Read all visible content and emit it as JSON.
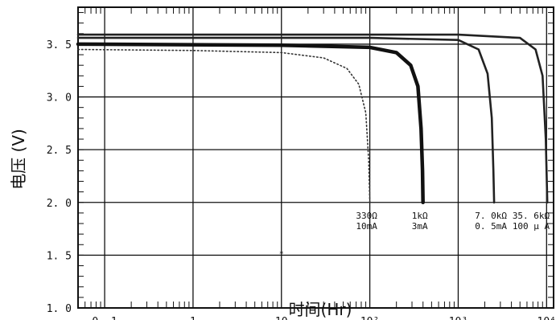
{
  "chart_data": {
    "type": "line",
    "xlabel": "时间(Hr)",
    "ylabel": "电压 (V)",
    "x_scale": "log",
    "xlim": [
      0.05,
      12000
    ],
    "ylim": [
      1.0,
      3.85
    ],
    "grid": true,
    "x_ticks": [
      {
        "value": 0.1,
        "label": "0. 1"
      },
      {
        "value": 1,
        "label": "1"
      },
      {
        "value": 10,
        "label": "10"
      },
      {
        "value": 100,
        "label": "10²"
      },
      {
        "value": 1000,
        "label": "10³"
      },
      {
        "value": 10000,
        "label": "10⁴"
      }
    ],
    "y_ticks": [
      {
        "value": 1.0,
        "label": "1. 0"
      },
      {
        "value": 1.5,
        "label": "1. 5"
      },
      {
        "value": 2.0,
        "label": "2. 0"
      },
      {
        "value": 2.5,
        "label": "2. 5"
      },
      {
        "value": 3.0,
        "label": "3. 0"
      },
      {
        "value": 3.5,
        "label": "3. 5"
      }
    ],
    "series": [
      {
        "label1": "330Ω",
        "label2": "10mA",
        "style": "dotted",
        "points": [
          [
            0.05,
            3.45
          ],
          [
            1,
            3.44
          ],
          [
            10,
            3.42
          ],
          [
            30,
            3.37
          ],
          [
            55,
            3.27
          ],
          [
            75,
            3.12
          ],
          [
            90,
            2.85
          ],
          [
            97,
            2.4
          ],
          [
            100,
            2.0
          ]
        ]
      },
      {
        "label1": "1kΩ",
        "label2": "3mA",
        "style": "thick",
        "points": [
          [
            0.05,
            3.5
          ],
          [
            10,
            3.49
          ],
          [
            100,
            3.47
          ],
          [
            200,
            3.42
          ],
          [
            290,
            3.3
          ],
          [
            350,
            3.1
          ],
          [
            380,
            2.7
          ],
          [
            395,
            2.3
          ],
          [
            400,
            2.0
          ]
        ]
      },
      {
        "label1": "7. 0kΩ",
        "label2": "0. 5mA",
        "style": "solid",
        "points": [
          [
            0.05,
            3.56
          ],
          [
            100,
            3.56
          ],
          [
            1000,
            3.54
          ],
          [
            1700,
            3.45
          ],
          [
            2150,
            3.22
          ],
          [
            2400,
            2.8
          ],
          [
            2500,
            2.3
          ],
          [
            2550,
            2.0
          ]
        ]
      },
      {
        "label1": "35. 6kΩ",
        "label2": "100 μ A",
        "style": "solid",
        "points": [
          [
            0.05,
            3.59
          ],
          [
            1000,
            3.59
          ],
          [
            5000,
            3.56
          ],
          [
            7500,
            3.45
          ],
          [
            9000,
            3.2
          ],
          [
            9800,
            2.6
          ],
          [
            10200,
            2.0
          ]
        ]
      }
    ],
    "stray_marks": [
      {
        "x": 10,
        "y": 1.52,
        "text": "*"
      }
    ]
  }
}
